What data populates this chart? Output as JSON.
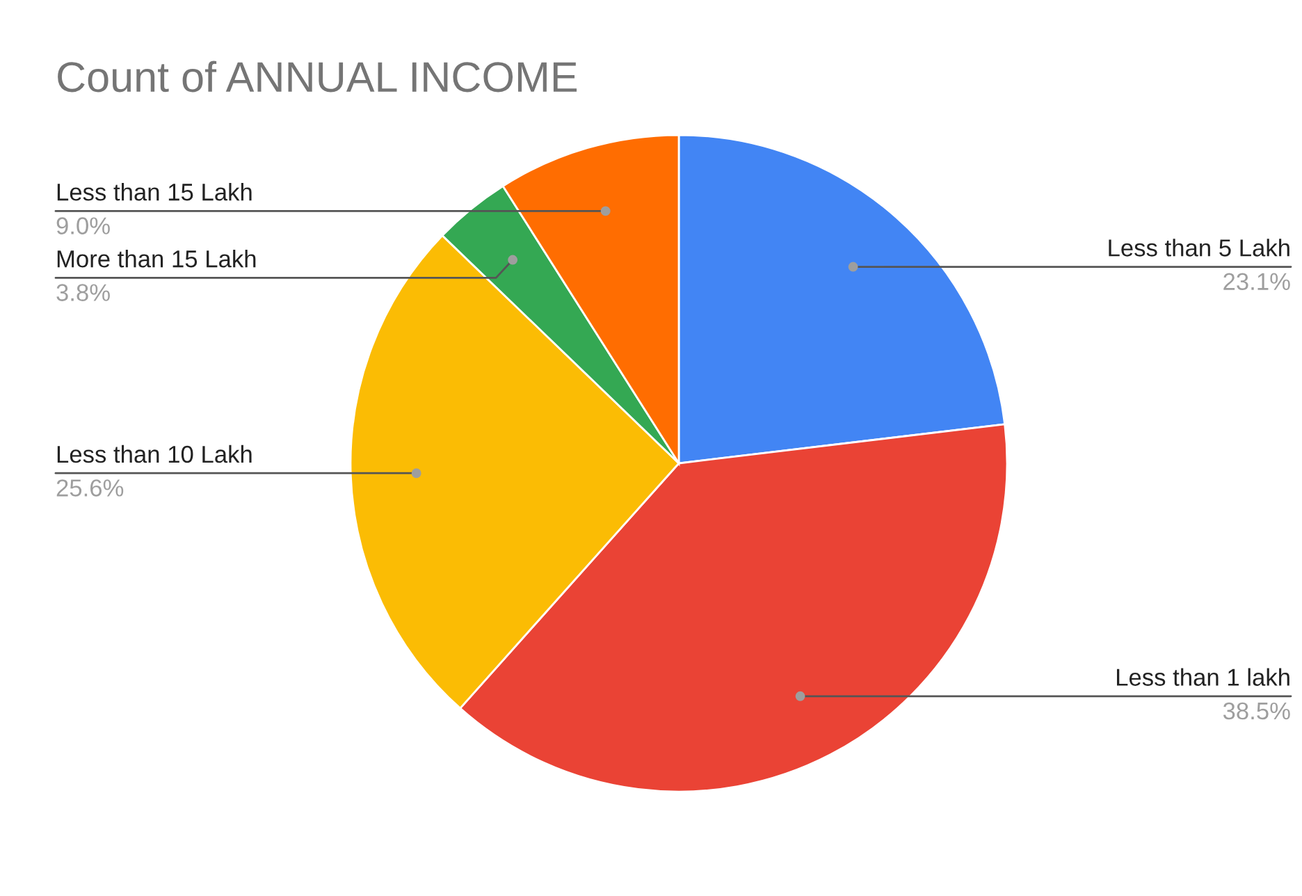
{
  "chart_data": {
    "type": "pie",
    "title": "Count of ANNUAL INCOME",
    "categories": [
      "Less than 5 Lakh",
      "Less than 1 lakh",
      "Less than 10 Lakh",
      "More than 15 Lakh",
      "Less than 15 Lakh"
    ],
    "values": [
      23.1,
      38.5,
      25.6,
      3.8,
      9.0
    ],
    "colors": [
      "#4285f4",
      "#ea4335",
      "#fbbc04",
      "#34a853",
      "#ff6d01"
    ],
    "value_labels": [
      "23.1%",
      "38.5%",
      "25.6%",
      "3.8%",
      "9.0%"
    ]
  }
}
